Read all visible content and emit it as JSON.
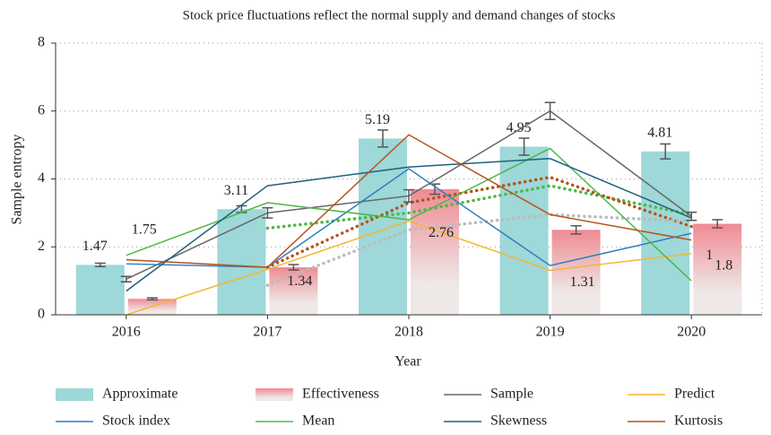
{
  "chart_data": {
    "type": "bar_line",
    "title": "Stock price fluctuations reflect the normal supply and demand changes of stocks",
    "x_label": "Year",
    "y_label": "Sample entropy",
    "categories": [
      "2016",
      "2017",
      "2018",
      "2019",
      "2020"
    ],
    "ylim": [
      0,
      8
    ],
    "yticks": [
      0,
      2,
      4,
      6,
      8
    ],
    "grid": true,
    "legend": "bottom",
    "bars": [
      {
        "name": "Approximate",
        "color": "#9ed8d8",
        "values": [
          1.47,
          3.11,
          5.19,
          4.95,
          4.81
        ],
        "errors": [
          0.05,
          0.1,
          0.25,
          0.25,
          0.22
        ],
        "value_labels": [
          "1.47",
          "3.11",
          "5.19",
          "4.95",
          "4.81"
        ]
      },
      {
        "name": "Effectiveness",
        "color": "#f08a93",
        "values": [
          0.47,
          1.4,
          3.7,
          2.5,
          2.68
        ],
        "errors": [
          0.03,
          0.08,
          0.15,
          0.12,
          0.12
        ]
      }
    ],
    "series": [
      {
        "name": "Sample",
        "color": "#666666",
        "values": [
          1.05,
          3.0,
          3.5,
          6.0,
          2.9
        ],
        "errors": [
          0.08,
          0.15,
          0.18,
          0.25,
          0.12
        ]
      },
      {
        "name": "Predict",
        "color": "#f5b731",
        "values": [
          0.0,
          1.34,
          2.76,
          1.31,
          1.8
        ],
        "value_labels": [
          null,
          "1.34",
          "2.76",
          "1.31",
          "1.8"
        ]
      },
      {
        "name": "Stock index",
        "color": "#2f7fc0",
        "values": [
          1.5,
          1.4,
          4.3,
          1.45,
          2.4
        ]
      },
      {
        "name": "Mean",
        "color": "#4db848",
        "values": [
          1.75,
          3.3,
          2.8,
          4.9,
          1.0
        ],
        "value_labels": [
          "1.75",
          null,
          null,
          null,
          "1"
        ]
      },
      {
        "name": "Skewness",
        "color": "#1f5f7f",
        "values": [
          0.7,
          3.8,
          4.35,
          4.6,
          2.85
        ]
      },
      {
        "name": "Kurtosis",
        "color": "#b5541e",
        "values": [
          1.62,
          1.4,
          5.3,
          2.95,
          2.2
        ]
      }
    ],
    "trend_lines": [
      {
        "color": "#4db848",
        "values": [
          null,
          2.55,
          3.0,
          3.8,
          2.95
        ]
      },
      {
        "color": "#b5541e",
        "values": [
          null,
          1.4,
          3.3,
          4.05,
          2.6
        ]
      },
      {
        "color": "#bbbbbb",
        "values": [
          null,
          0.87,
          2.5,
          2.95,
          2.75
        ]
      }
    ]
  }
}
